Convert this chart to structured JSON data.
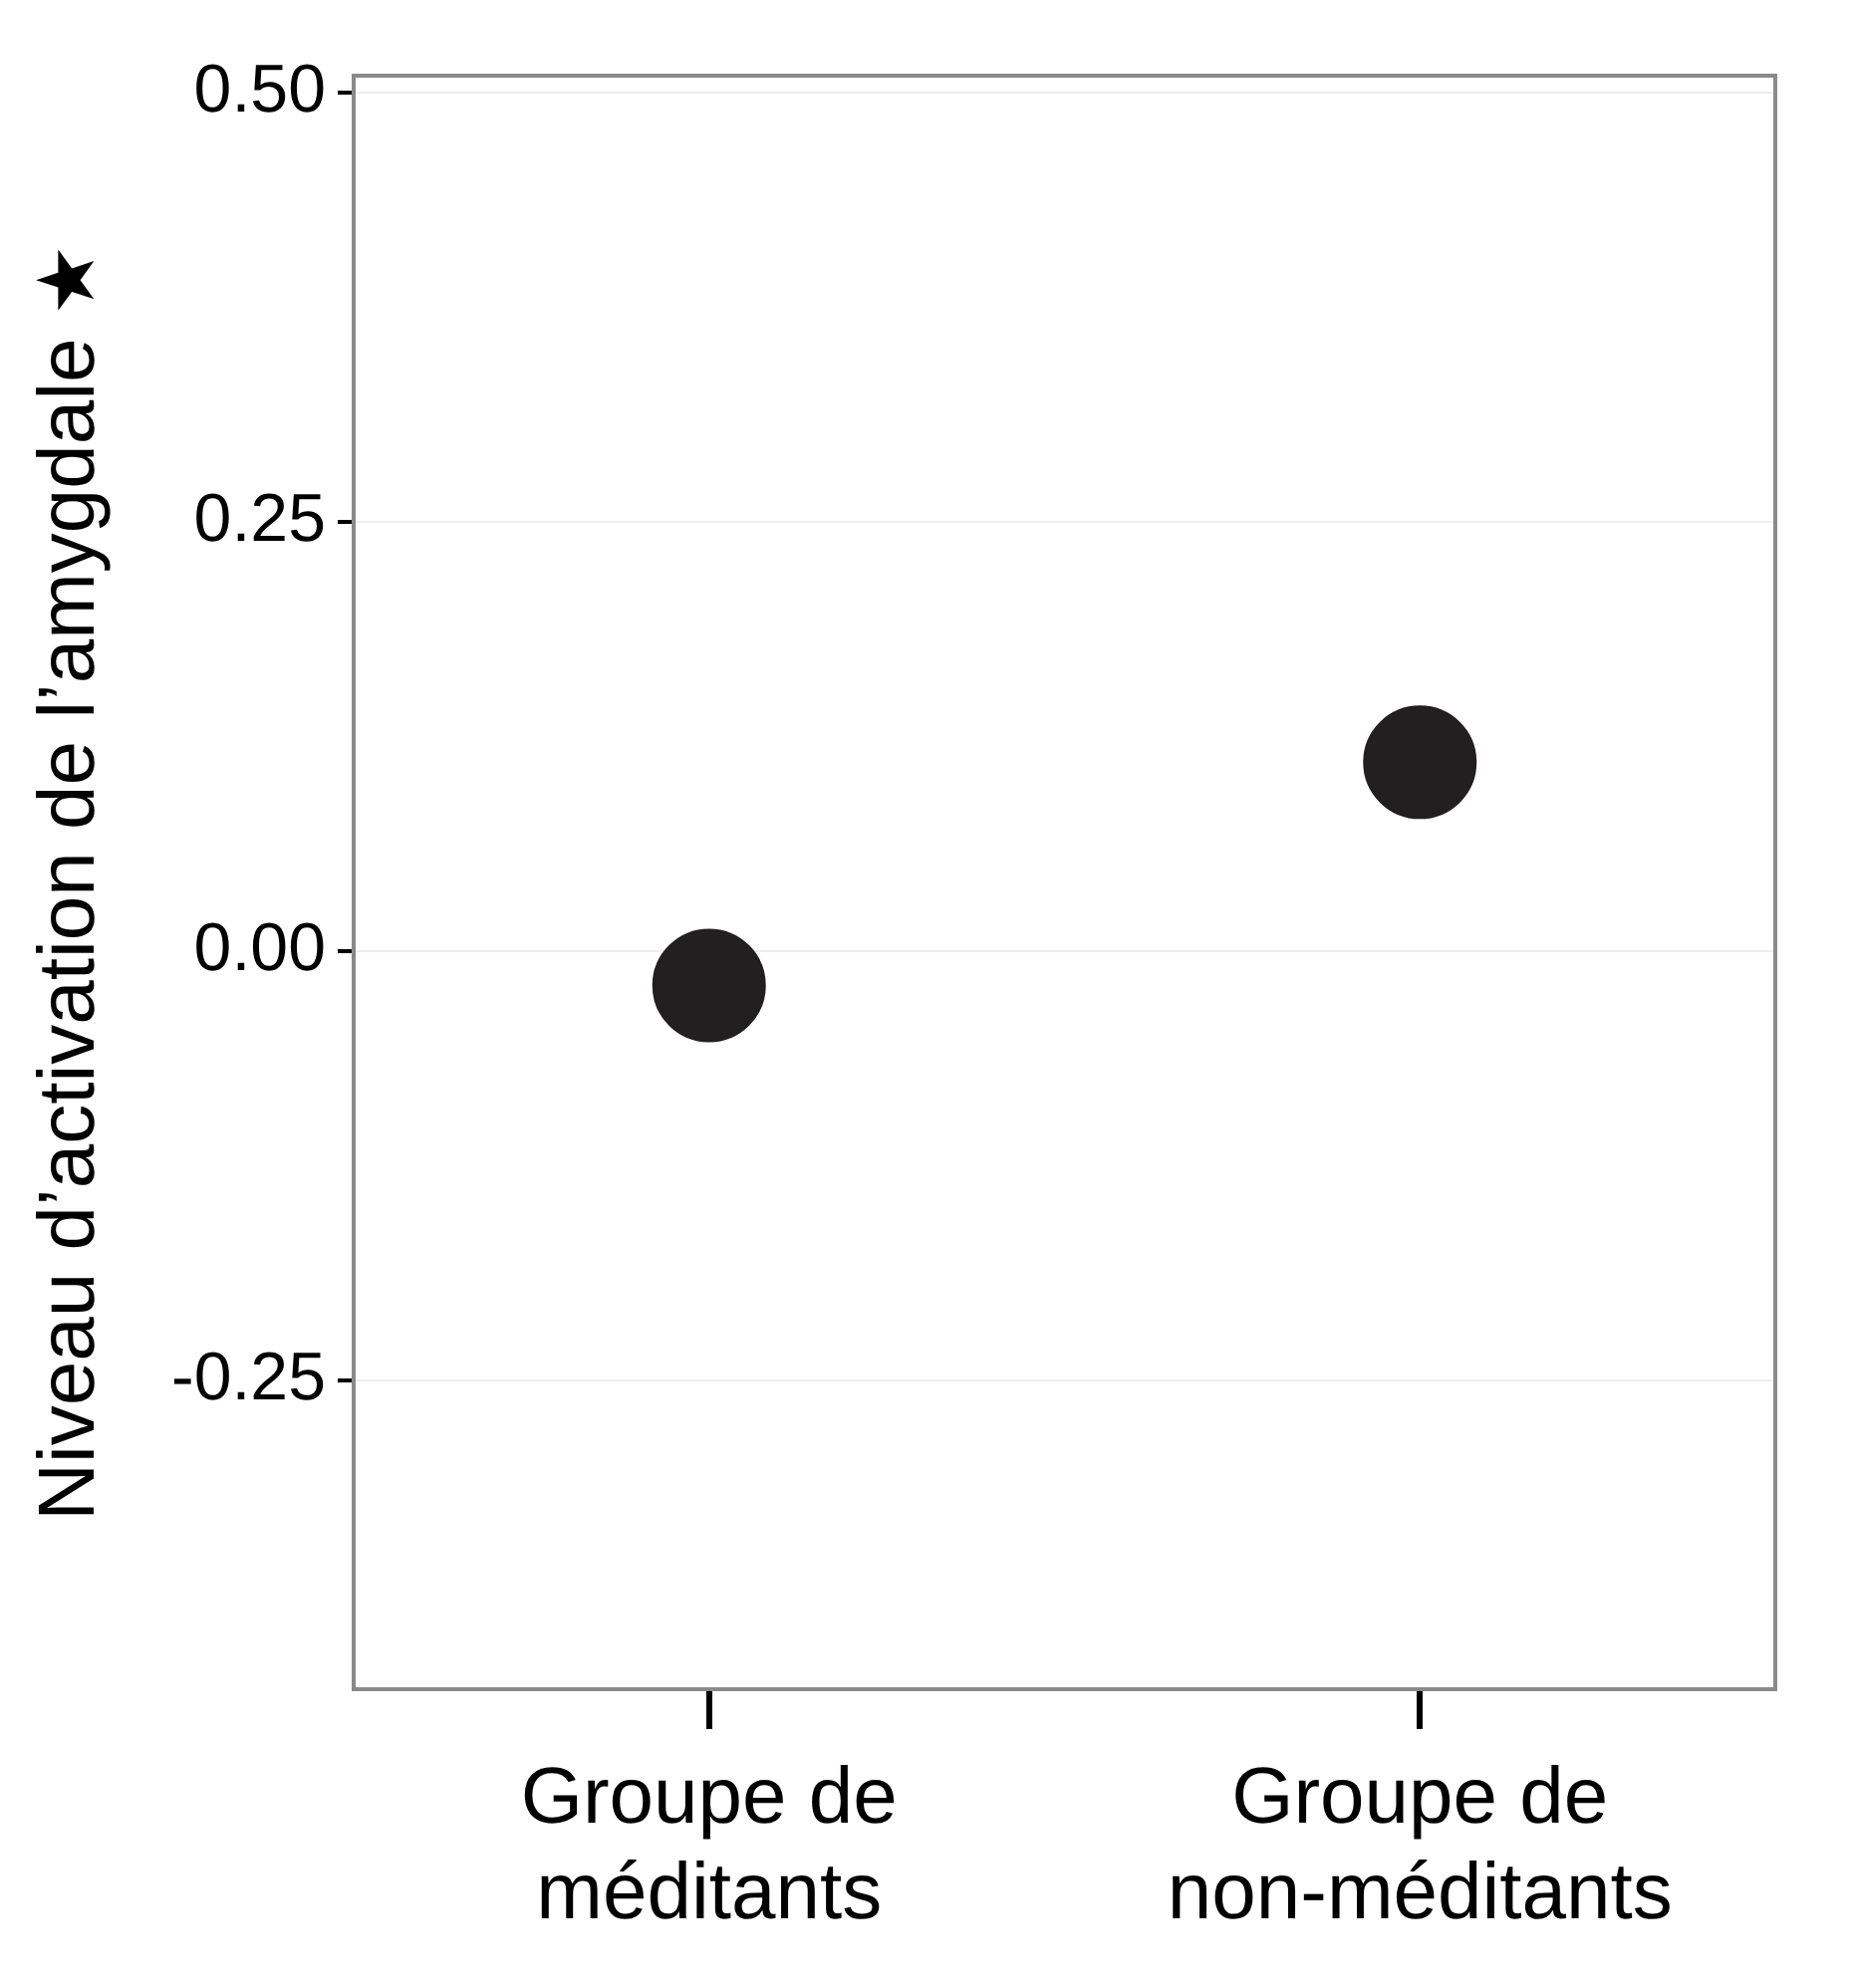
{
  "chart_data": {
    "type": "scatter",
    "ylabel": "Niveau d’activation de l’amygdale ★",
    "categories": [
      "Groupe de méditants",
      "Groupe de non-méditants"
    ],
    "series": [
      {
        "color": "#231f20",
        "values": [
          -0.02,
          0.11
        ]
      }
    ],
    "ylim": [
      -0.43,
      0.51
    ],
    "yticks": [
      {
        "value": -0.25,
        "label": "-0.25"
      },
      {
        "value": 0,
        "label": "0.00"
      },
      {
        "value": 0.25,
        "label": "0.25"
      },
      {
        "value": 0.5,
        "label": "0.50"
      }
    ],
    "grid": "y",
    "marker": "circle",
    "legend": false
  }
}
